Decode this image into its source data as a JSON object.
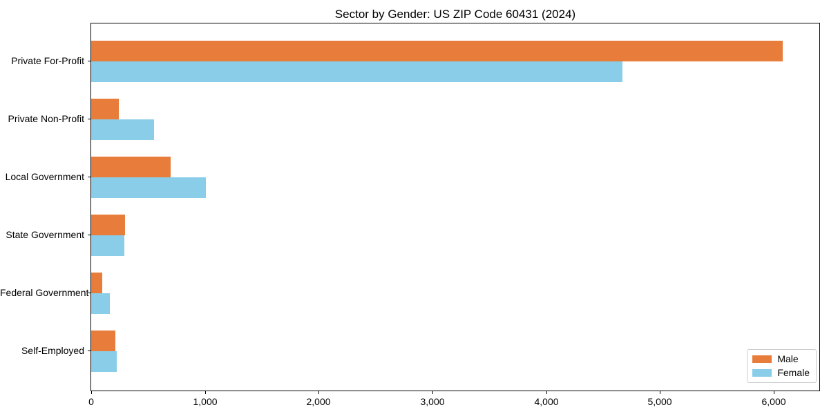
{
  "title": "Sector by Gender: US ZIP Code 60431 (2024)",
  "colors": {
    "male": "#e87c3a",
    "female": "#89cde9",
    "axis": "#000000",
    "background": "#ffffff",
    "legend_border": "#cccccc"
  },
  "legend": {
    "position": "lower right",
    "items": [
      {
        "label": "Male",
        "color": "#e87c3a"
      },
      {
        "label": "Female",
        "color": "#89cde9"
      }
    ]
  },
  "chart_data": {
    "type": "bar",
    "orientation": "horizontal",
    "title": "Sector by Gender: US ZIP Code 60431 (2024)",
    "categories": [
      "Private For-Profit",
      "Private Non-Profit",
      "Local Government",
      "State Government",
      "Federal Government",
      "Self-Employed"
    ],
    "series": [
      {
        "name": "Male",
        "color": "#e87c3a",
        "values": [
          6080,
          240,
          700,
          300,
          95,
          215
        ]
      },
      {
        "name": "Female",
        "color": "#89cde9",
        "values": [
          4670,
          550,
          1010,
          290,
          165,
          225
        ]
      }
    ],
    "xlabel": "",
    "ylabel": "",
    "xlim": [
      0,
      6400
    ],
    "xticks": [
      0,
      1000,
      2000,
      3000,
      4000,
      5000,
      6000
    ],
    "xtick_labels": [
      "0",
      "1,000",
      "2,000",
      "3,000",
      "4,000",
      "5,000",
      "6,000"
    ],
    "grid": false,
    "legend_position": "lower right"
  }
}
